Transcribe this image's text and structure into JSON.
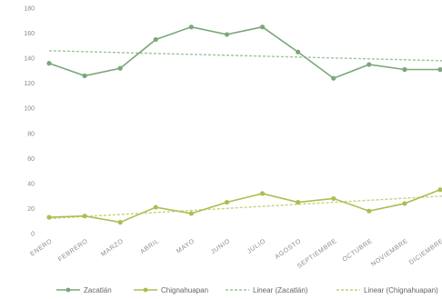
{
  "chart_data": {
    "type": "line",
    "title": "",
    "xlabel": "",
    "ylabel": "",
    "ylim": [
      0,
      180
    ],
    "yticks": [
      0,
      20,
      40,
      60,
      80,
      100,
      120,
      140,
      160,
      180
    ],
    "categories": [
      "ENERO",
      "FEBRERO",
      "MARZO",
      "ABRIL",
      "MAYO",
      "JUNIO",
      "JULIO",
      "AGOSTO",
      "SEPTIEMBRE",
      "OCTUBRE",
      "NOVIEMBRE",
      "DICIEMBRE"
    ],
    "grid": false,
    "legend_position": "bottom",
    "series": [
      {
        "name": "Zacatlán",
        "color": "#7aa77a",
        "values": [
          136,
          126,
          132,
          155,
          165,
          159,
          165,
          145,
          124,
          135,
          131,
          131
        ],
        "trendline": {
          "name": "Linear (Zacatlán)",
          "color": "#9cc49c",
          "start": 146,
          "end": 138
        }
      },
      {
        "name": "Chignahuapan",
        "color": "#a9bf52",
        "values": [
          13,
          14,
          9,
          21,
          16,
          25,
          32,
          25,
          28,
          18,
          24,
          35
        ],
        "trendline": {
          "name": "Linear (Chignahuapan)",
          "color": "#c2d47a",
          "start": 12,
          "end": 30
        }
      }
    ]
  }
}
